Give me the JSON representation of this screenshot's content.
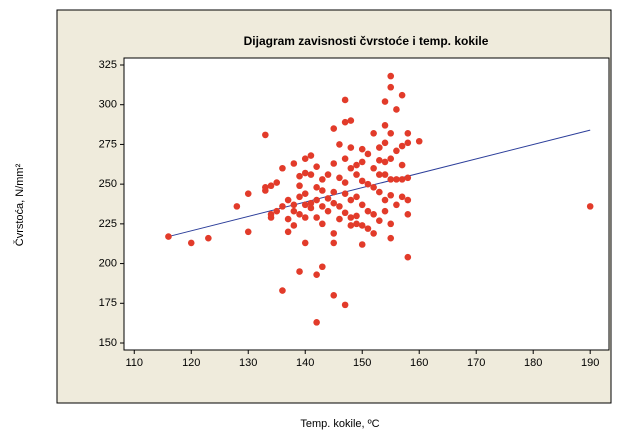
{
  "chart_data": {
    "type": "scatter",
    "title": "Dijagram zavisnosti čvrstoće i temp. kokile",
    "x_label": "Temp. kokile, ºC",
    "y_label": "Čvrstoća, N/mm²",
    "color": "#e23b2a",
    "x": [
      116,
      120,
      123,
      128,
      130,
      130,
      133,
      133,
      133,
      134,
      134,
      134,
      135,
      135,
      136,
      136,
      136,
      137,
      137,
      137,
      138,
      138,
      138,
      138,
      139,
      139,
      139,
      139,
      139,
      140,
      140,
      140,
      140,
      140,
      140,
      141,
      141,
      141,
      141,
      142,
      142,
      142,
      142,
      142,
      142,
      143,
      143,
      143,
      143,
      143,
      144,
      144,
      144,
      145,
      145,
      145,
      145,
      145,
      145,
      145,
      146,
      146,
      146,
      146,
      147,
      147,
      147,
      147,
      147,
      147,
      147,
      148,
      148,
      148,
      148,
      148,
      148,
      149,
      149,
      149,
      149,
      149,
      150,
      150,
      150,
      150,
      150,
      150,
      151,
      151,
      151,
      151,
      152,
      152,
      152,
      152,
      152,
      153,
      153,
      153,
      153,
      153,
      154,
      154,
      154,
      154,
      154,
      154,
      154,
      155,
      155,
      155,
      155,
      155,
      155,
      155,
      155,
      156,
      156,
      156,
      156,
      157,
      157,
      157,
      157,
      157,
      158,
      158,
      158,
      158,
      158,
      158,
      160,
      190
    ],
    "values": [
      217,
      213,
      216,
      236,
      244,
      220,
      281,
      248,
      246,
      249,
      229,
      231,
      251,
      233,
      183,
      260,
      236,
      240,
      228,
      220,
      263,
      237,
      233,
      224,
      195,
      255,
      249,
      242,
      231,
      266,
      257,
      244,
      237,
      213,
      229,
      268,
      256,
      238,
      235,
      193,
      163,
      261,
      248,
      240,
      229,
      198,
      253,
      246,
      236,
      225,
      233,
      241,
      256,
      285,
      263,
      245,
      238,
      219,
      180,
      213,
      275,
      254,
      236,
      228,
      303,
      289,
      266,
      251,
      244,
      232,
      174,
      290,
      273,
      260,
      240,
      229,
      224,
      262,
      256,
      242,
      230,
      225,
      272,
      264,
      252,
      237,
      224,
      212,
      269,
      250,
      233,
      222,
      282,
      260,
      248,
      231,
      219,
      273,
      265,
      256,
      245,
      227,
      302,
      287,
      276,
      264,
      256,
      240,
      233,
      318,
      311,
      282,
      266,
      253,
      243,
      225,
      216,
      297,
      271,
      253,
      237,
      306,
      274,
      262,
      253,
      242,
      282,
      276,
      254,
      240,
      231,
      204,
      277,
      236
    ],
    "fit_line": {
      "x": [
        116,
        190
      ],
      "values": [
        217,
        284
      ],
      "color": "#2c3e9a"
    },
    "xlim": [
      108.2,
      193.3
    ],
    "ylim": [
      145.6,
      329.4
    ],
    "xticks": [
      110,
      120,
      130,
      140,
      150,
      160,
      170,
      180,
      190
    ],
    "yticks": [
      150,
      175,
      200,
      225,
      250,
      275,
      300,
      325
    ]
  }
}
